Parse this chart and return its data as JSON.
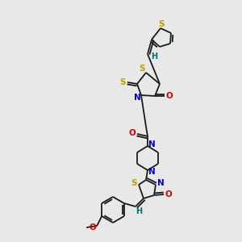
{
  "background_color": "#e8e8e8",
  "bond_color": "#1a1a1a",
  "colors": {
    "S": "#b8a000",
    "N": "#0000cc",
    "O": "#cc0000",
    "H": "#007070",
    "C": "#1a1a1a"
  },
  "figsize": [
    3.0,
    3.0
  ],
  "dpi": 100
}
